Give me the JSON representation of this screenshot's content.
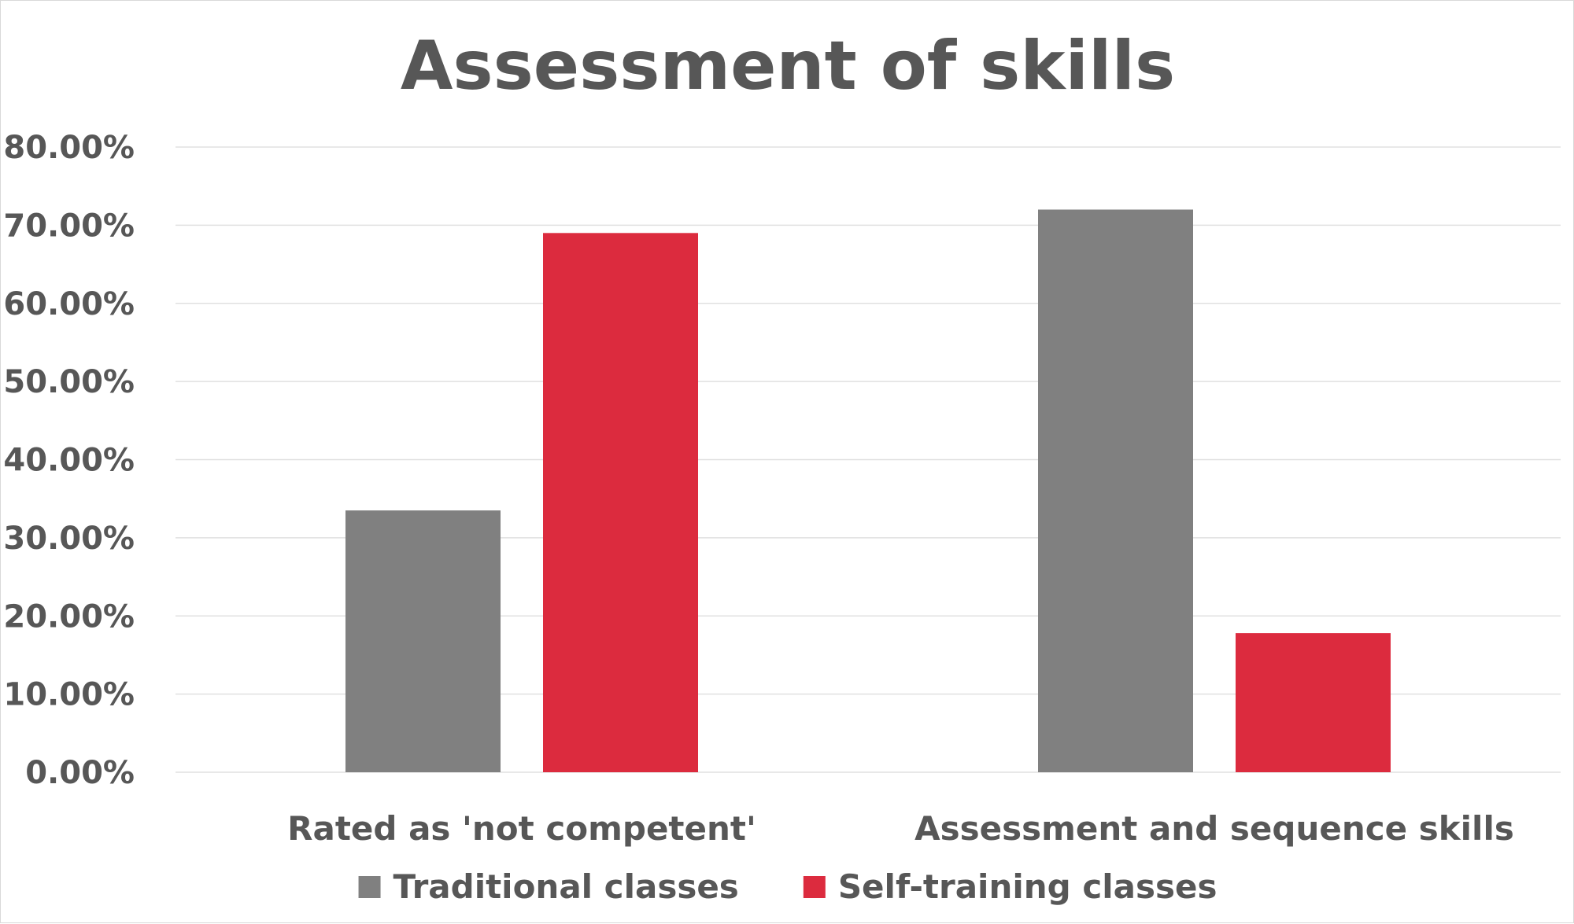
{
  "chart_data": {
    "type": "bar",
    "title": "Assessment of skills",
    "categories": [
      "Rated as 'not competent'",
      "Assessment and sequence skills"
    ],
    "series": [
      {
        "name": "Traditional classes",
        "values": [
          33.5,
          72.0
        ],
        "color": "#808080"
      },
      {
        "name": "Self-training classes",
        "values": [
          69.0,
          17.8
        ],
        "color": "#dc2b3e"
      }
    ],
    "yticks": [
      "0.00%",
      "10.00%",
      "20.00%",
      "30.00%",
      "40.00%",
      "50.00%",
      "60.00%",
      "70.00%",
      "80.00%"
    ],
    "ylim": [
      0,
      80
    ],
    "grid": true,
    "legend_position": "bottom"
  }
}
